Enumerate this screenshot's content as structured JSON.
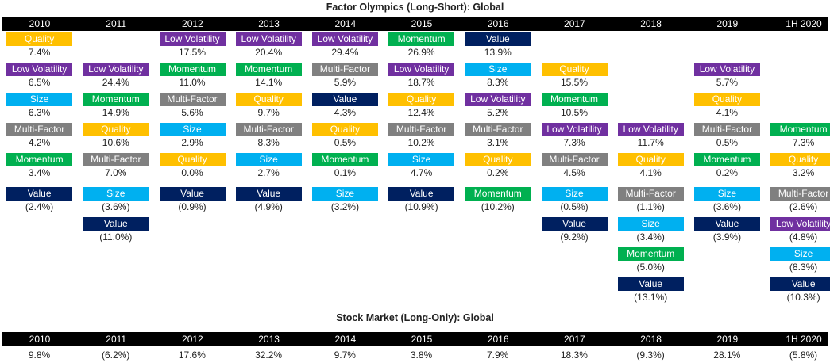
{
  "titles": {
    "main": "Factor Olympics (Long-Short): Global",
    "stock": "Stock Market (Long-Only): Global"
  },
  "colors": {
    "Quality": "#FFC000",
    "Low Volatility": "#7030A0",
    "Momentum": "#00B050",
    "Multi-Factor": "#808080",
    "Size": "#00B0F0",
    "Value": "#002060"
  },
  "chart_data": [
    {
      "type": "table",
      "title": "Factor Olympics (Long-Short): Global",
      "columns": [
        "2010",
        "2011",
        "2012",
        "2013",
        "2014",
        "2015",
        "2016",
        "2017",
        "2018",
        "2019",
        "1H 2020"
      ],
      "rankings": [
        [
          {
            "factor": "Quality",
            "value": "7.4%"
          },
          {
            "factor": "Low Volatility",
            "value": "6.5%"
          },
          {
            "factor": "Size",
            "value": "6.3%"
          },
          {
            "factor": "Multi-Factor",
            "value": "4.2%"
          },
          {
            "factor": "Momentum",
            "value": "3.4%"
          },
          {
            "factor": "Value",
            "value": "(2.4%)"
          }
        ],
        [
          {
            "factor": "Low Volatility",
            "value": "24.4%"
          },
          {
            "factor": "Momentum",
            "value": "14.9%"
          },
          {
            "factor": "Quality",
            "value": "10.6%"
          },
          {
            "factor": "Multi-Factor",
            "value": "7.0%"
          },
          {
            "factor": "Size",
            "value": "(3.6%)"
          },
          {
            "factor": "Value",
            "value": "(11.0%)"
          }
        ],
        [
          {
            "factor": "Low Volatility",
            "value": "17.5%"
          },
          {
            "factor": "Momentum",
            "value": "11.0%"
          },
          {
            "factor": "Multi-Factor",
            "value": "5.6%"
          },
          {
            "factor": "Size",
            "value": "2.9%"
          },
          {
            "factor": "Quality",
            "value": "0.0%"
          },
          {
            "factor": "Value",
            "value": "(0.9%)"
          }
        ],
        [
          {
            "factor": "Low Volatility",
            "value": "20.4%"
          },
          {
            "factor": "Momentum",
            "value": "14.1%"
          },
          {
            "factor": "Quality",
            "value": "9.7%"
          },
          {
            "factor": "Multi-Factor",
            "value": "8.3%"
          },
          {
            "factor": "Size",
            "value": "2.7%"
          },
          {
            "factor": "Value",
            "value": "(4.9%)"
          }
        ],
        [
          {
            "factor": "Low Volatility",
            "value": "29.4%"
          },
          {
            "factor": "Multi-Factor",
            "value": "5.9%"
          },
          {
            "factor": "Value",
            "value": "4.3%"
          },
          {
            "factor": "Quality",
            "value": "0.5%"
          },
          {
            "factor": "Momentum",
            "value": "0.1%"
          },
          {
            "factor": "Size",
            "value": "(3.2%)"
          }
        ],
        [
          {
            "factor": "Momentum",
            "value": "26.9%"
          },
          {
            "factor": "Low Volatility",
            "value": "18.7%"
          },
          {
            "factor": "Quality",
            "value": "12.4%"
          },
          {
            "factor": "Multi-Factor",
            "value": "10.2%"
          },
          {
            "factor": "Size",
            "value": "4.7%"
          },
          {
            "factor": "Value",
            "value": "(10.9%)"
          }
        ],
        [
          {
            "factor": "Value",
            "value": "13.9%"
          },
          {
            "factor": "Size",
            "value": "8.3%"
          },
          {
            "factor": "Low Volatility",
            "value": "5.2%"
          },
          {
            "factor": "Multi-Factor",
            "value": "3.1%"
          },
          {
            "factor": "Quality",
            "value": "0.2%"
          },
          {
            "factor": "Momentum",
            "value": "(10.2%)"
          }
        ],
        [
          {
            "factor": "Quality",
            "value": "15.5%"
          },
          {
            "factor": "Momentum",
            "value": "10.5%"
          },
          {
            "factor": "Low Volatility",
            "value": "7.3%"
          },
          {
            "factor": "Multi-Factor",
            "value": "4.5%"
          },
          {
            "factor": "Size",
            "value": "(0.5%)"
          },
          {
            "factor": "Value",
            "value": "(9.2%)"
          }
        ],
        [
          {
            "factor": "Low Volatility",
            "value": "11.7%"
          },
          {
            "factor": "Quality",
            "value": "4.1%"
          },
          {
            "factor": "Multi-Factor",
            "value": "(1.1%)"
          },
          {
            "factor": "Size",
            "value": "(3.4%)"
          },
          {
            "factor": "Momentum",
            "value": "(5.0%)"
          },
          {
            "factor": "Value",
            "value": "(13.1%)"
          }
        ],
        [
          {
            "factor": "Low Volatility",
            "value": "5.7%"
          },
          {
            "factor": "Quality",
            "value": "4.1%"
          },
          {
            "factor": "Multi-Factor",
            "value": "0.5%"
          },
          {
            "factor": "Momentum",
            "value": "0.2%"
          },
          {
            "factor": "Size",
            "value": "(3.6%)"
          },
          {
            "factor": "Value",
            "value": "(3.9%)"
          }
        ],
        [
          {
            "factor": "Momentum",
            "value": "7.3%"
          },
          {
            "factor": "Quality",
            "value": "3.2%"
          },
          {
            "factor": "Multi-Factor",
            "value": "(2.6%)"
          },
          {
            "factor": "Low Volatility",
            "value": "(4.8%)"
          },
          {
            "factor": "Size",
            "value": "(8.3%)"
          },
          {
            "factor": "Value",
            "value": "(10.3%)"
          }
        ]
      ]
    },
    {
      "type": "table",
      "title": "Stock Market (Long-Only): Global",
      "columns": [
        "2010",
        "2011",
        "2012",
        "2013",
        "2014",
        "2015",
        "2016",
        "2017",
        "2018",
        "2019",
        "1H 2020"
      ],
      "values": [
        "9.8%",
        "(6.2%)",
        "17.6%",
        "32.2%",
        "9.7%",
        "3.8%",
        "7.9%",
        "18.3%",
        "(9.3%)",
        "28.1%",
        "(5.8%)"
      ]
    }
  ]
}
